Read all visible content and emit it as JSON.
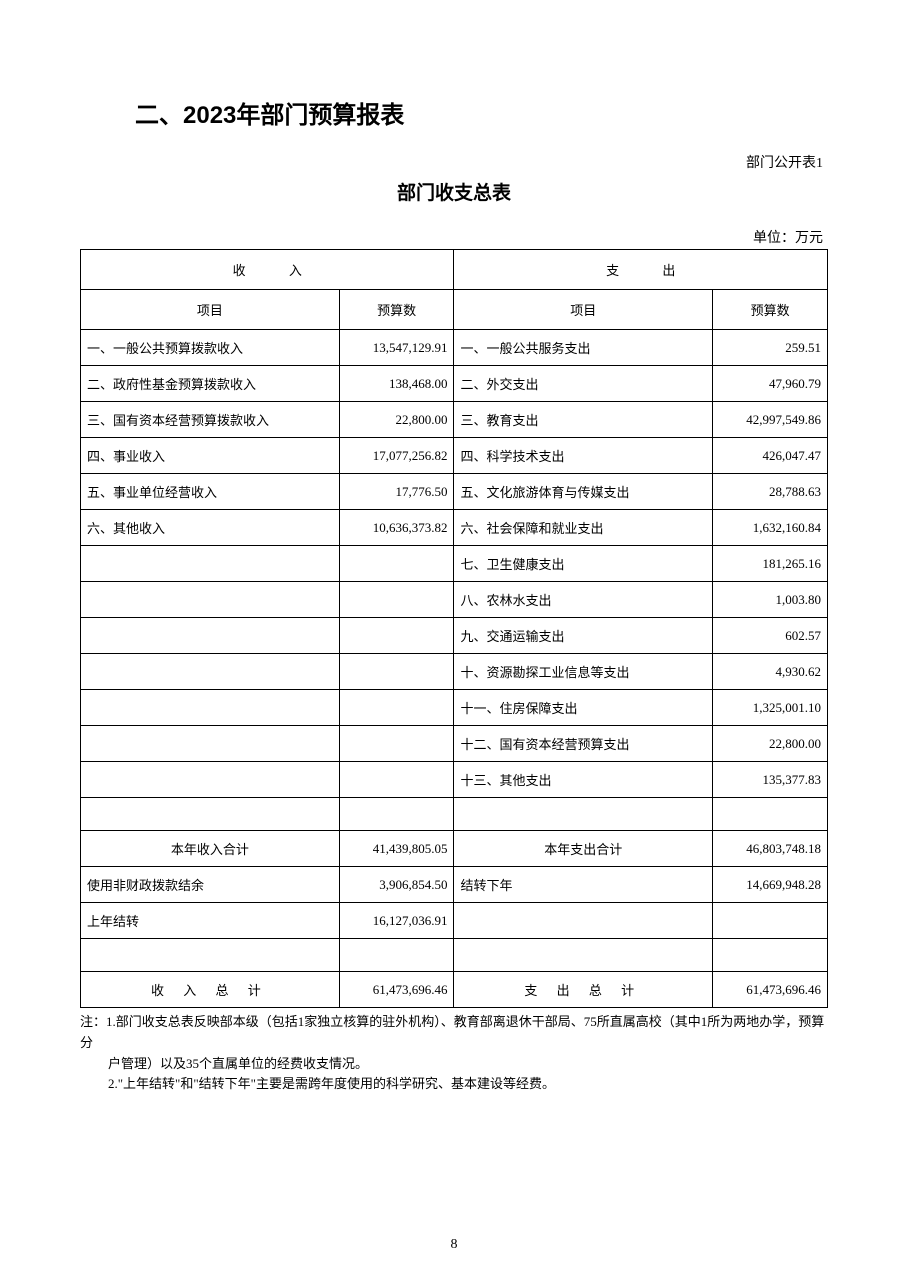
{
  "section_title": "二、2023年部门预算报表",
  "table_label": "部门公开表1",
  "table_title": "部门收支总表",
  "unit_label": "单位：万元",
  "headers": {
    "income_header": "收   入",
    "expense_header": "支   出",
    "item": "项目",
    "budget": "预算数"
  },
  "rows": [
    {
      "income_item": "一、一般公共预算拨款收入",
      "income_budget": "13,547,129.91",
      "expense_item": "一、一般公共服务支出",
      "expense_budget": "259.51"
    },
    {
      "income_item": "二、政府性基金预算拨款收入",
      "income_budget": "138,468.00",
      "expense_item": "二、外交支出",
      "expense_budget": "47,960.79"
    },
    {
      "income_item": "三、国有资本经营预算拨款收入",
      "income_budget": "22,800.00",
      "expense_item": "三、教育支出",
      "expense_budget": "42,997,549.86"
    },
    {
      "income_item": "四、事业收入",
      "income_budget": "17,077,256.82",
      "expense_item": "四、科学技术支出",
      "expense_budget": "426,047.47"
    },
    {
      "income_item": "五、事业单位经营收入",
      "income_budget": "17,776.50",
      "expense_item": "五、文化旅游体育与传媒支出",
      "expense_budget": "28,788.63"
    },
    {
      "income_item": "六、其他收入",
      "income_budget": "10,636,373.82",
      "expense_item": "六、社会保障和就业支出",
      "expense_budget": "1,632,160.84"
    },
    {
      "income_item": "",
      "income_budget": "",
      "expense_item": "七、卫生健康支出",
      "expense_budget": "181,265.16"
    },
    {
      "income_item": "",
      "income_budget": "",
      "expense_item": "八、农林水支出",
      "expense_budget": "1,003.80"
    },
    {
      "income_item": "",
      "income_budget": "",
      "expense_item": "九、交通运输支出",
      "expense_budget": "602.57"
    },
    {
      "income_item": "",
      "income_budget": "",
      "expense_item": "十、资源勘探工业信息等支出",
      "expense_budget": "4,930.62"
    },
    {
      "income_item": "",
      "income_budget": "",
      "expense_item": "十一、住房保障支出",
      "expense_budget": "1,325,001.10"
    },
    {
      "income_item": "",
      "income_budget": "",
      "expense_item": "十二、国有资本经营预算支出",
      "expense_budget": "22,800.00"
    },
    {
      "income_item": "",
      "income_budget": "",
      "expense_item": "十三、其他支出",
      "expense_budget": "135,377.83"
    },
    {
      "income_item": "",
      "income_budget": "",
      "expense_item": "",
      "expense_budget": ""
    }
  ],
  "subtotal_row": {
    "income_item": "本年收入合计",
    "income_budget": "41,439,805.05",
    "expense_item": "本年支出合计",
    "expense_budget": "46,803,748.18"
  },
  "carryover_rows": [
    {
      "income_item": "使用非财政拨款结余",
      "income_budget": "3,906,854.50",
      "expense_item": "结转下年",
      "expense_budget": "14,669,948.28"
    },
    {
      "income_item": "上年结转",
      "income_budget": "16,127,036.91",
      "expense_item": "",
      "expense_budget": ""
    },
    {
      "income_item": "",
      "income_budget": "",
      "expense_item": "",
      "expense_budget": ""
    }
  ],
  "total_row": {
    "income_item": "收 入 总 计",
    "income_budget": "61,473,696.46",
    "expense_item": "支 出 总 计",
    "expense_budget": "61,473,696.46"
  },
  "footnote1": "注：1.部门收支总表反映部本级（包括1家独立核算的驻外机构）、教育部离退休干部局、75所直属高校（其中1所为两地办学，预算分",
  "footnote1b": "户管理）以及35个直属单位的经费收支情况。",
  "footnote2": "2.\"上年结转\"和\"结转下年\"主要是需跨年度使用的科学研究、基本建设等经费。",
  "page_number": "8"
}
